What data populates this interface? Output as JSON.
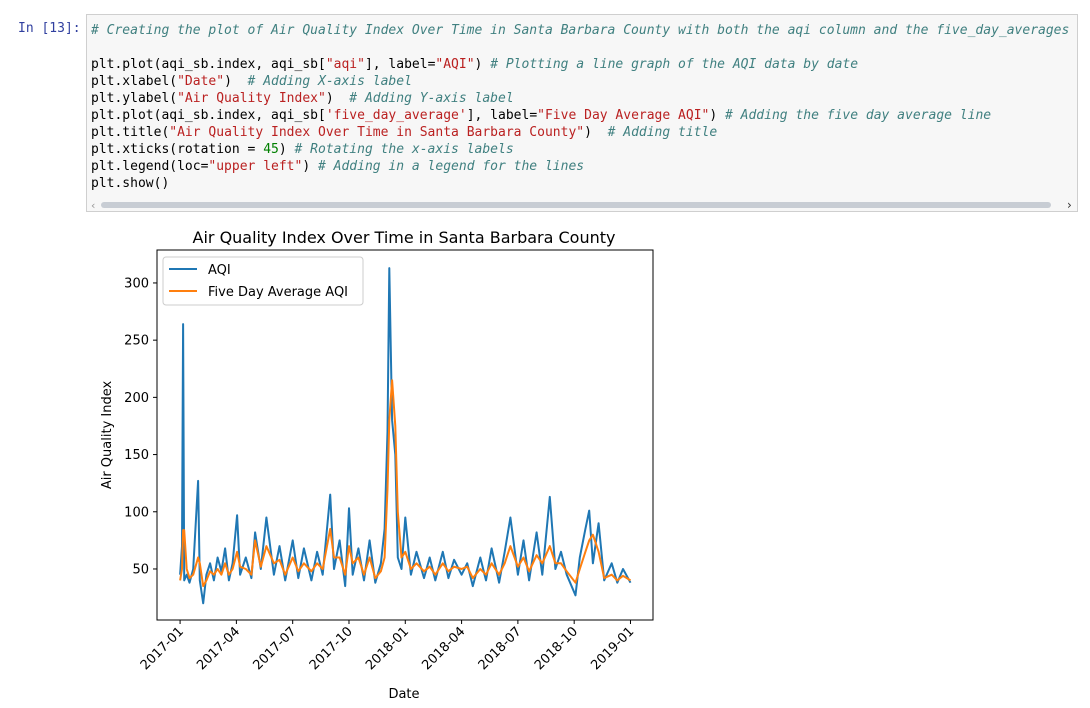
{
  "cell": {
    "prompt": "In [13]:",
    "lines": [
      {
        "code": "",
        "comment": "# Creating the plot of Air Quality Index Over Time in Santa Barbara County with both the aqi column and the five_day_averages col"
      },
      {
        "code": "plt.plot(aqi_sb.index, aqi_sb[\"aqi\"], label=\"AQI\") ",
        "comment": "# Plotting a line graph of the AQI data by date"
      },
      {
        "code": "plt.xlabel(\"Date\")  ",
        "comment": "# Adding X-axis label"
      },
      {
        "code": "plt.ylabel(\"Air Quality Index\")  ",
        "comment": "# Adding Y-axis label"
      },
      {
        "code": "plt.plot(aqi_sb.index, aqi_sb['five_day_average'], label=\"Five Day Average AQI\") ",
        "comment": "# Adding the five day average line"
      },
      {
        "code": "plt.title(\"Air Quality Index Over Time in Santa Barbara County\")  ",
        "comment": "# Adding title"
      },
      {
        "code": "plt.xticks(rotation = 45) ",
        "comment": "# Rotating the x-axis labels"
      },
      {
        "code": "plt.legend(loc=\"upper left\") ",
        "comment": "# Adding in a legend for the lines"
      },
      {
        "code": "plt.show()",
        "comment": ""
      }
    ]
  },
  "chart_data": {
    "type": "line",
    "title": "Air Quality Index Over Time in Santa Barbara County",
    "x_label": "Date",
    "y_label": "Air Quality Index",
    "legend": "upper left",
    "x": [
      0,
      0.1,
      0.16,
      0.22,
      0.35,
      0.5,
      0.7,
      0.96,
      1.05,
      1.23,
      1.4,
      1.6,
      1.8,
      2.0,
      2.2,
      2.4,
      2.6,
      2.8,
      3.04,
      3.2,
      3.5,
      3.8,
      4.0,
      4.3,
      4.6,
      5.0,
      5.3,
      5.6,
      6.0,
      6.3,
      6.6,
      7.0,
      7.3,
      7.6,
      8.0,
      8.2,
      8.5,
      8.8,
      9.0,
      9.2,
      9.5,
      9.8,
      10.1,
      10.4,
      10.7,
      10.9,
      11.05,
      11.15,
      11.3,
      11.47,
      11.6,
      11.8,
      12.0,
      12.3,
      12.6,
      13.0,
      13.3,
      13.6,
      14.0,
      14.3,
      14.6,
      15.0,
      15.3,
      15.6,
      16.0,
      16.3,
      16.6,
      17.0,
      17.3,
      17.6,
      18.0,
      18.3,
      18.6,
      19.0,
      19.3,
      19.7,
      20.0,
      20.3,
      20.6,
      21.07,
      21.3,
      21.6,
      21.8,
      22.0,
      22.3,
      22.6,
      23.0,
      23.3,
      23.6,
      24.0
    ],
    "series": [
      {
        "name": "AQI",
        "color": "#1f77b4",
        "values": [
          45,
          70,
          264,
          40,
          45,
          38,
          50,
          127,
          40,
          20,
          45,
          55,
          40,
          60,
          48,
          68,
          40,
          55,
          97,
          45,
          60,
          42,
          82,
          50,
          95,
          45,
          70,
          40,
          75,
          42,
          68,
          40,
          65,
          45,
          115,
          50,
          75,
          35,
          103,
          45,
          68,
          40,
          75,
          38,
          55,
          85,
          170,
          313,
          180,
          150,
          60,
          50,
          95,
          45,
          65,
          42,
          60,
          40,
          65,
          42,
          58,
          45,
          55,
          35,
          60,
          40,
          68,
          38,
          65,
          95,
          45,
          75,
          40,
          82,
          45,
          113,
          50,
          65,
          45,
          27,
          60,
          85,
          101,
          55,
          90,
          40,
          55,
          38,
          50,
          38
        ]
      },
      {
        "name": "Five Day Average AQI",
        "color": "#ff7f0e",
        "values": [
          40,
          50,
          84,
          84,
          50,
          42,
          45,
          60,
          55,
          35,
          40,
          48,
          45,
          50,
          45,
          55,
          45,
          50,
          65,
          52,
          50,
          45,
          75,
          52,
          70,
          55,
          58,
          45,
          60,
          48,
          55,
          48,
          55,
          50,
          85,
          60,
          60,
          45,
          70,
          55,
          60,
          45,
          60,
          42,
          48,
          60,
          120,
          180,
          215,
          175,
          100,
          60,
          65,
          50,
          55,
          48,
          52,
          45,
          55,
          48,
          52,
          50,
          52,
          42,
          50,
          45,
          55,
          45,
          55,
          70,
          52,
          60,
          48,
          62,
          55,
          70,
          55,
          55,
          48,
          38,
          50,
          65,
          75,
          80,
          65,
          42,
          45,
          40,
          44,
          40
        ]
      }
    ],
    "xlim": [
      -1.23,
      25.2
    ],
    "ylim": [
      5.4,
      328.8
    ],
    "xticks": [
      {
        "value": 0,
        "label": "2017-01"
      },
      {
        "value": 3,
        "label": "2017-04"
      },
      {
        "value": 6,
        "label": "2017-07"
      },
      {
        "value": 9,
        "label": "2017-10"
      },
      {
        "value": 12,
        "label": "2018-01"
      },
      {
        "value": 15,
        "label": "2018-04"
      },
      {
        "value": 18,
        "label": "2018-07"
      },
      {
        "value": 21,
        "label": "2018-10"
      },
      {
        "value": 24,
        "label": "2019-01"
      }
    ],
    "yticks": [
      50,
      100,
      150,
      200,
      250,
      300
    ],
    "grid": false
  }
}
